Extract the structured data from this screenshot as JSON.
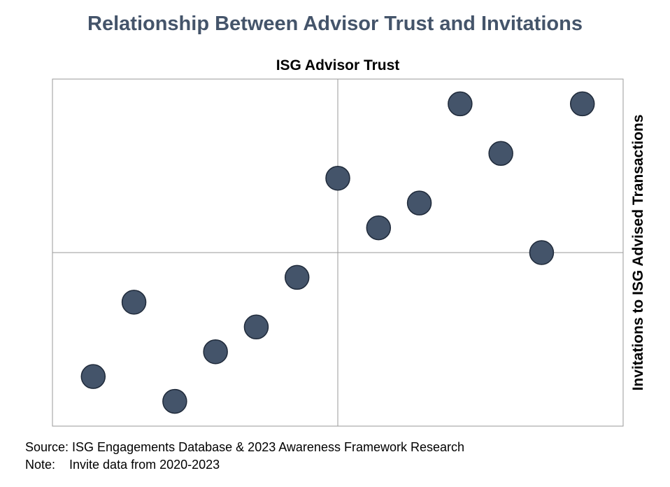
{
  "chart_data": {
    "type": "scatter",
    "title": "Relationship Between Advisor Trust and Invitations",
    "xlabel": "ISG Advisor Trust",
    "ylabel": "Invitations to ISG Advised Transactions",
    "xlim": [
      0,
      14
    ],
    "ylim": [
      0,
      14
    ],
    "quadrant_dividers": {
      "x": 7,
      "y": 7
    },
    "grid": false,
    "tick_labels": false,
    "marker_color": "#44546A",
    "marker_edge_color": "#1F2A3A",
    "points": [
      {
        "x": 1,
        "y": 2
      },
      {
        "x": 2,
        "y": 5
      },
      {
        "x": 3,
        "y": 1
      },
      {
        "x": 4,
        "y": 3
      },
      {
        "x": 5,
        "y": 4
      },
      {
        "x": 6,
        "y": 6
      },
      {
        "x": 7,
        "y": 10
      },
      {
        "x": 8,
        "y": 8
      },
      {
        "x": 9,
        "y": 9
      },
      {
        "x": 10,
        "y": 13
      },
      {
        "x": 11,
        "y": 11
      },
      {
        "x": 12,
        "y": 7
      },
      {
        "x": 13,
        "y": 13
      }
    ]
  },
  "footer": {
    "source": "Source: ISG Engagements Database & 2023 Awareness Framework Research",
    "note": "Note:    Invite data from 2020-2023"
  }
}
